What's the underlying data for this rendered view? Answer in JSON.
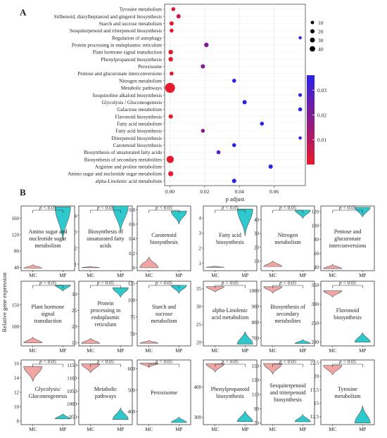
{
  "panel_a": {
    "label": "A",
    "chart_data": {
      "type": "scatter",
      "xlabel": "p adjust",
      "xlim": [
        -0.003,
        0.078
      ],
      "xticks": [
        "0.00",
        "0.02",
        "0.04",
        "0.06"
      ],
      "xtick_values": [
        0,
        0.02,
        0.04,
        0.06
      ],
      "categories": [
        "Tyrosine metabolism",
        "Stilbenoid, diarylheptanoid and gingerol biosynthesis",
        "Starch and sucrose metabolism",
        "Sesquiterpenoid and triterpenoid biosynthesis",
        "Regulation of autophagy",
        "Protein processing in endoplasmic reticulum",
        "Plant hormone signal transduction",
        "Phenylpropanoid biosynthesis",
        "Peroxisome",
        "Pentose and glucuronate interconversions",
        "Nitrogen metabolism",
        "Metabolic pathways",
        "Isoquinoline alkaloid biosynthesis",
        "Glycolysis / Gluconeogenesis",
        "Galactose metabolism",
        "Flavonoid biosynthesis",
        "Fatty acid metabolism",
        "Fatty acid biosynthesis",
        "Diterpenoid biosynthesis",
        "Carotenoid biosynthesis",
        "Biosynthesis of unsaturated fatty acids",
        "Biosynthesis of secondary metabolites",
        "Arginine and proline metabolism",
        "Amino sugar and nucleotide sugar metabolism",
        "alpha-Linolenic acid metabolism"
      ],
      "x": [
        0.002,
        0.005,
        0.001,
        0.001,
        0.075,
        0.021,
        0.0005,
        0.0005,
        0.019,
        0.001,
        0.037,
        0.0001,
        0.075,
        0.043,
        0.075,
        0.0005,
        0.053,
        0.019,
        0.075,
        0.037,
        0.028,
        0.0002,
        0.058,
        0.0005,
        0.037
      ],
      "sizes": [
        4,
        5,
        5,
        4,
        2,
        6,
        6,
        6,
        5,
        4,
        4,
        42,
        3,
        5,
        4,
        5,
        4,
        4,
        2,
        4,
        4,
        20,
        5,
        8,
        5
      ],
      "size_legend": [
        10,
        20,
        30,
        40
      ],
      "color_legend": {
        "ticks": [
          "0.03",
          "0.02",
          "0.01"
        ],
        "tick_values": [
          0.03,
          0.02,
          0.01
        ],
        "range": [
          0.0,
          0.036
        ],
        "low_color": "#e8192c",
        "high_color": "#2b21e6"
      },
      "grid": true
    }
  },
  "panel_b": {
    "label": "B",
    "chart_data": {
      "type": "violin",
      "ylabel": "Relative gene expression",
      "groups": [
        "MC",
        "MP"
      ],
      "significance": "p < 0.05",
      "colors": {
        "MC": "#f2a6a4",
        "MP": "#2ec9cc"
      },
      "panels": [
        {
          "title": "Amino sugar and nucleotide sugar metabolism",
          "yticks": [
            40,
            80,
            120,
            160
          ],
          "ylim": [
            32,
            190
          ],
          "MC": [
            38,
            47
          ],
          "MP": [
            105,
            188
          ]
        },
        {
          "title": "Biosynthesis of unsaturated fatty acids",
          "yticks": [
            1,
            2,
            3,
            4
          ],
          "ylim": [
            0.6,
            4.6
          ],
          "MC": [
            0.78,
            0.86
          ],
          "MP": [
            3.0,
            4.6
          ]
        },
        {
          "title": "Carotenoid biosynthesis",
          "yticks": [
            0.0,
            0.2,
            0.4,
            0.6,
            0.8
          ],
          "ylim": [
            -0.04,
            0.85
          ],
          "MC": [
            0.0,
            0.15
          ],
          "MP": [
            0.6,
            0.78
          ]
        },
        {
          "title": "Fatty acid biosynthesis",
          "yticks": [
            1,
            2,
            3,
            4
          ],
          "ylim": [
            0.5,
            4.8
          ],
          "MC": [
            0.72,
            0.8
          ],
          "MP": [
            2.8,
            4.6
          ]
        },
        {
          "title": "Nitrogen metabolism",
          "yticks": [
            10,
            20,
            30,
            40
          ],
          "ylim": [
            3,
            50
          ],
          "MC": [
            6,
            10
          ],
          "MP": [
            41,
            47
          ]
        },
        {
          "title": "Pentose and glucuronate interconversions",
          "yticks": [
            40,
            60,
            80,
            100,
            120
          ],
          "ylim": [
            35,
            128
          ],
          "MC": [
            38,
            44
          ],
          "MP": [
            112,
            126
          ]
        },
        {
          "title": "Plant hormone signal transduction",
          "yticks": [
            100,
            150
          ],
          "ylim": [
            55,
            205
          ],
          "MC": [
            62,
            75
          ],
          "MP": [
            182,
            196
          ]
        },
        {
          "title": "Protein processing in endoplasmic reticulum",
          "yticks": [
            15,
            20,
            25,
            30
          ],
          "ylim": [
            14,
            34
          ],
          "MC": [
            14.8,
            16.3
          ],
          "MP": [
            29,
            32
          ]
        },
        {
          "title": "Starch and sucrose metabolism",
          "yticks": [
            50,
            75,
            100,
            125
          ],
          "ylim": [
            32,
            128
          ],
          "MC": [
            36,
            40
          ],
          "MP": [
            110,
            122
          ]
        },
        {
          "title": "alpha-Linolenic acid metabolism",
          "yticks": [
            20,
            25,
            30,
            35
          ],
          "ylim": [
            19,
            37
          ],
          "MC": [
            34,
            35.5
          ],
          "MP": [
            19.5,
            23
          ]
        },
        {
          "title": "Biosynthesis of secondary metabolites",
          "yticks": [
            700,
            800,
            900,
            1000
          ],
          "ylim": [
            650,
            1060
          ],
          "MC": [
            985,
            1025
          ],
          "MP": [
            665,
            690
          ]
        },
        {
          "title": "Flavonoid biosynthesis",
          "yticks": [
            200,
            250,
            300,
            350
          ],
          "ylim": [
            190,
            360
          ],
          "MC": [
            318,
            335
          ],
          "MP": [
            200,
            225
          ]
        },
        {
          "title": "Glycolysis/ Gluconeogenesis",
          "yticks": [
            8,
            10,
            12,
            14,
            16
          ],
          "ylim": [
            7.5,
            16.5
          ],
          "MC": [
            13.5,
            15.6
          ],
          "MP": [
            8.3,
            9.0
          ]
        },
        {
          "title": "Metabolic pathways",
          "yticks": [
            950,
            1000,
            1050,
            1100,
            1150
          ],
          "ylim": [
            920,
            1170
          ],
          "MC": [
            1120,
            1155
          ],
          "MP": [
            940,
            985
          ]
        },
        {
          "title": "Peroxisome",
          "yticks": [
            400,
            500,
            600
          ],
          "ylim": [
            340,
            640
          ],
          "MC": [
            605,
            625
          ],
          "MP": [
            350,
            375
          ]
        },
        {
          "title": "Phenylpropanoid biosynthesis",
          "yticks": [
            300,
            400
          ],
          "ylim": [
            275,
            490
          ],
          "MC": [
            450,
            478
          ],
          "MP": [
            285,
            320
          ]
        },
        {
          "title": "Sesquiterpenoid and triterpenoid biosynthesis",
          "yticks": [
            70,
            90,
            110,
            130,
            150
          ],
          "ylim": [
            68,
            158
          ],
          "MC": [
            138,
            153
          ],
          "MP": [
            72,
            82
          ]
        },
        {
          "title": "Tyrosine metabolism",
          "yticks": [
            12.5,
            15.0,
            17.5,
            20.0,
            22.5
          ],
          "ylim": [
            11,
            23
          ],
          "MC": [
            20.2,
            22.0
          ],
          "MP": [
            11.3,
            14.5
          ]
        }
      ]
    }
  }
}
